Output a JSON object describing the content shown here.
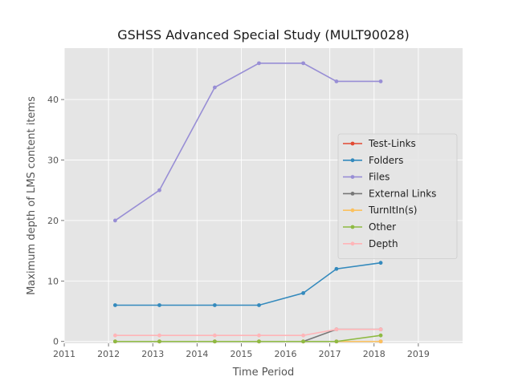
{
  "chart_data": {
    "type": "line",
    "title": "GSHSS Advanced Special Study (MULT90028)",
    "xlabel": "Time Period",
    "ylabel": "Maximum depth of LMS content items",
    "xlim": [
      2011,
      2020
    ],
    "ylim": [
      -0.3,
      48.5
    ],
    "xticks": [
      2011,
      2012,
      2013,
      2014,
      2015,
      2016,
      2017,
      2018,
      2019
    ],
    "yticks": [
      0,
      10,
      20,
      30,
      40
    ],
    "grid": true,
    "legend_position": "center-right",
    "x": [
      2012.15,
      2013.15,
      2014.4,
      2015.4,
      2016.4,
      2017.15,
      2018.15
    ],
    "series": [
      {
        "name": "Test-Links",
        "color": "#E24A33",
        "values": [
          0,
          0,
          0,
          0,
          0,
          0,
          0
        ]
      },
      {
        "name": "Folders",
        "color": "#348ABD",
        "values": [
          6,
          6,
          6,
          6,
          8,
          12,
          13
        ]
      },
      {
        "name": "Files",
        "color": "#988ED5",
        "values": [
          20,
          25,
          42,
          46,
          46,
          43,
          43
        ]
      },
      {
        "name": "External Links",
        "color": "#777777",
        "values": [
          0,
          0,
          0,
          0,
          0,
          2,
          2
        ]
      },
      {
        "name": "TurnItIn(s)",
        "color": "#FBC15E",
        "values": [
          0,
          0,
          0,
          0,
          0,
          0,
          0
        ]
      },
      {
        "name": "Other",
        "color": "#8EBA42",
        "values": [
          0,
          0,
          0,
          0,
          0,
          0,
          1
        ]
      },
      {
        "name": "Depth",
        "color": "#FFB5B8",
        "values": [
          1,
          1,
          1,
          1,
          1,
          2,
          2
        ]
      }
    ]
  }
}
